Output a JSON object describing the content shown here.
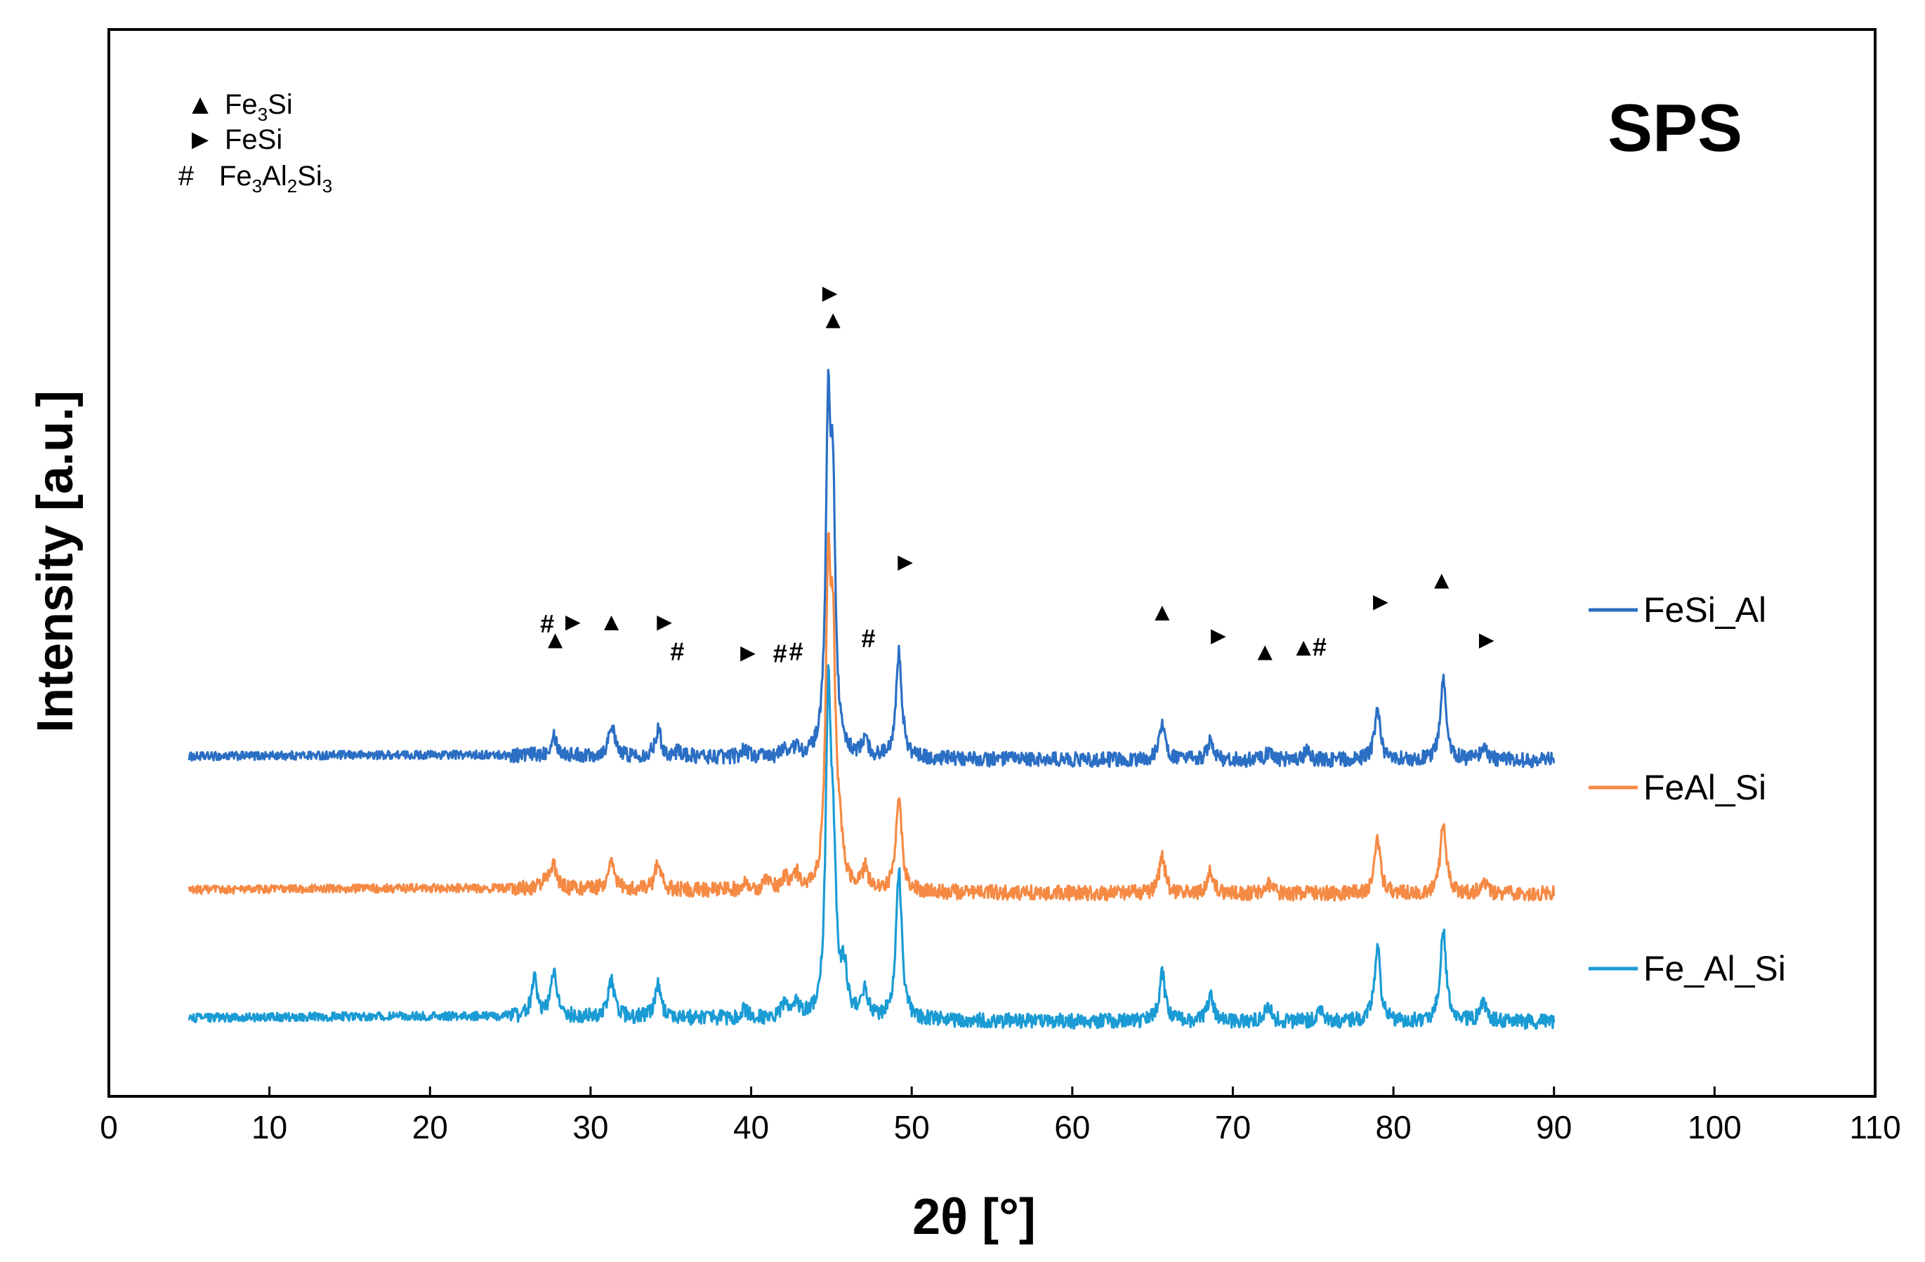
{
  "chart_data": {
    "type": "line",
    "title": "SPS",
    "xlabel": "2θ [°]",
    "ylabel": "Intensity [a.u.]",
    "xlim": [
      0,
      110
    ],
    "x_ticks": [
      "0",
      "10",
      "20",
      "30",
      "40",
      "50",
      "60",
      "70",
      "80",
      "90",
      "100",
      "110"
    ],
    "y_ticks": "none",
    "colors": {
      "FeSi_Al": "#2b6fc4",
      "FeAl_Si": "#f58a45",
      "Fe_Al_Si": "#1a9bd4"
    },
    "legend": [
      {
        "symbol": "▲",
        "name": "Fe",
        "sub": "3",
        "rest": "Si"
      },
      {
        "symbol": "►",
        "name": "FeSi",
        "sub": "",
        "rest": ""
      },
      {
        "symbol": "#",
        "name": "Fe",
        "sub": "3",
        "rest": "Al",
        "sub2": "2",
        "rest2": "Si",
        "sub3": "3"
      }
    ],
    "x_range": [
      5,
      90
    ],
    "series": [
      {
        "name": "FeSi_Al",
        "baseline": 31.5,
        "noise": 0.5,
        "peaks": [
          [
            27.7,
            2.0
          ],
          [
            31.3,
            3.0
          ],
          [
            34.2,
            2.5
          ],
          [
            35.5,
            0.5
          ],
          [
            39.6,
            0.8
          ],
          [
            42.1,
            0.8
          ],
          [
            42.8,
            0.8
          ],
          [
            44.8,
            30
          ],
          [
            45.1,
            22
          ],
          [
            47.1,
            1.5
          ],
          [
            49.2,
            10
          ],
          [
            65.6,
            3.5
          ],
          [
            68.6,
            1.8
          ],
          [
            72.2,
            0.8
          ],
          [
            74.6,
            0.8
          ],
          [
            79.0,
            4.5
          ],
          [
            83.1,
            7.5
          ],
          [
            85.6,
            1.3
          ]
        ]
      },
      {
        "name": "FeAl_Si",
        "baseline": 19.0,
        "noise": 0.5,
        "peaks": [
          [
            27.2,
            1.0
          ],
          [
            27.7,
            2.0
          ],
          [
            31.3,
            3.0
          ],
          [
            34.2,
            2.5
          ],
          [
            39.6,
            0.8
          ],
          [
            41.0,
            1.0
          ],
          [
            42.1,
            1.2
          ],
          [
            42.8,
            1.5
          ],
          [
            44.8,
            28
          ],
          [
            45.1,
            20
          ],
          [
            45.5,
            4.0
          ],
          [
            47.1,
            2.0
          ],
          [
            49.2,
            9.0
          ],
          [
            65.6,
            3.5
          ],
          [
            68.6,
            2.0
          ],
          [
            72.2,
            0.8
          ],
          [
            79.0,
            5.0
          ],
          [
            83.1,
            6.5
          ],
          [
            85.6,
            1.0
          ]
        ]
      },
      {
        "name": "Fe_Al_Si",
        "baseline": 7.0,
        "noise": 0.5,
        "peaks": [
          [
            26.5,
            3.5
          ],
          [
            27.7,
            4.0
          ],
          [
            31.3,
            3.5
          ],
          [
            34.2,
            3.0
          ],
          [
            39.6,
            0.8
          ],
          [
            42.1,
            1.5
          ],
          [
            42.8,
            1.5
          ],
          [
            44.8,
            28
          ],
          [
            45.1,
            14
          ],
          [
            45.8,
            4.0
          ],
          [
            47.1,
            2.5
          ],
          [
            49.2,
            14
          ],
          [
            65.6,
            4.5
          ],
          [
            68.6,
            2.5
          ],
          [
            72.2,
            1.5
          ],
          [
            75.5,
            1.0
          ],
          [
            79.0,
            7.0
          ],
          [
            83.1,
            8.5
          ],
          [
            85.6,
            2.0
          ]
        ]
      }
    ],
    "annotations": [
      {
        "symbol": "#",
        "x": 27.3,
        "y": 43.5
      },
      {
        "symbol": "►",
        "x": 28.9,
        "y": 43.7
      },
      {
        "symbol": "▲",
        "x": 27.8,
        "y": 42.0
      },
      {
        "symbol": "▲",
        "x": 31.3,
        "y": 43.7
      },
      {
        "symbol": "►",
        "x": 34.6,
        "y": 43.7
      },
      {
        "symbol": "#",
        "x": 35.4,
        "y": 40.9
      },
      {
        "symbol": "►",
        "x": 39.8,
        "y": 40.8
      },
      {
        "symbol": "#",
        "x": 41.8,
        "y": 40.7
      },
      {
        "symbol": "#",
        "x": 42.8,
        "y": 40.9
      },
      {
        "symbol": "►",
        "x": 44.9,
        "y": 74.5
      },
      {
        "symbol": "▲",
        "x": 45.1,
        "y": 72.0
      },
      {
        "symbol": "#",
        "x": 47.3,
        "y": 42.1
      },
      {
        "symbol": "►",
        "x": 49.6,
        "y": 49.3
      },
      {
        "symbol": "▲",
        "x": 65.6,
        "y": 44.6
      },
      {
        "symbol": "►",
        "x": 69.1,
        "y": 42.4
      },
      {
        "symbol": "▲",
        "x": 72.0,
        "y": 40.9
      },
      {
        "symbol": "▲",
        "x": 74.4,
        "y": 41.3
      },
      {
        "symbol": "#",
        "x": 75.4,
        "y": 41.3
      },
      {
        "symbol": "►",
        "x": 79.2,
        "y": 45.6
      },
      {
        "symbol": "▲",
        "x": 83.0,
        "y": 47.6
      },
      {
        "symbol": "►",
        "x": 85.8,
        "y": 42.0
      }
    ]
  }
}
